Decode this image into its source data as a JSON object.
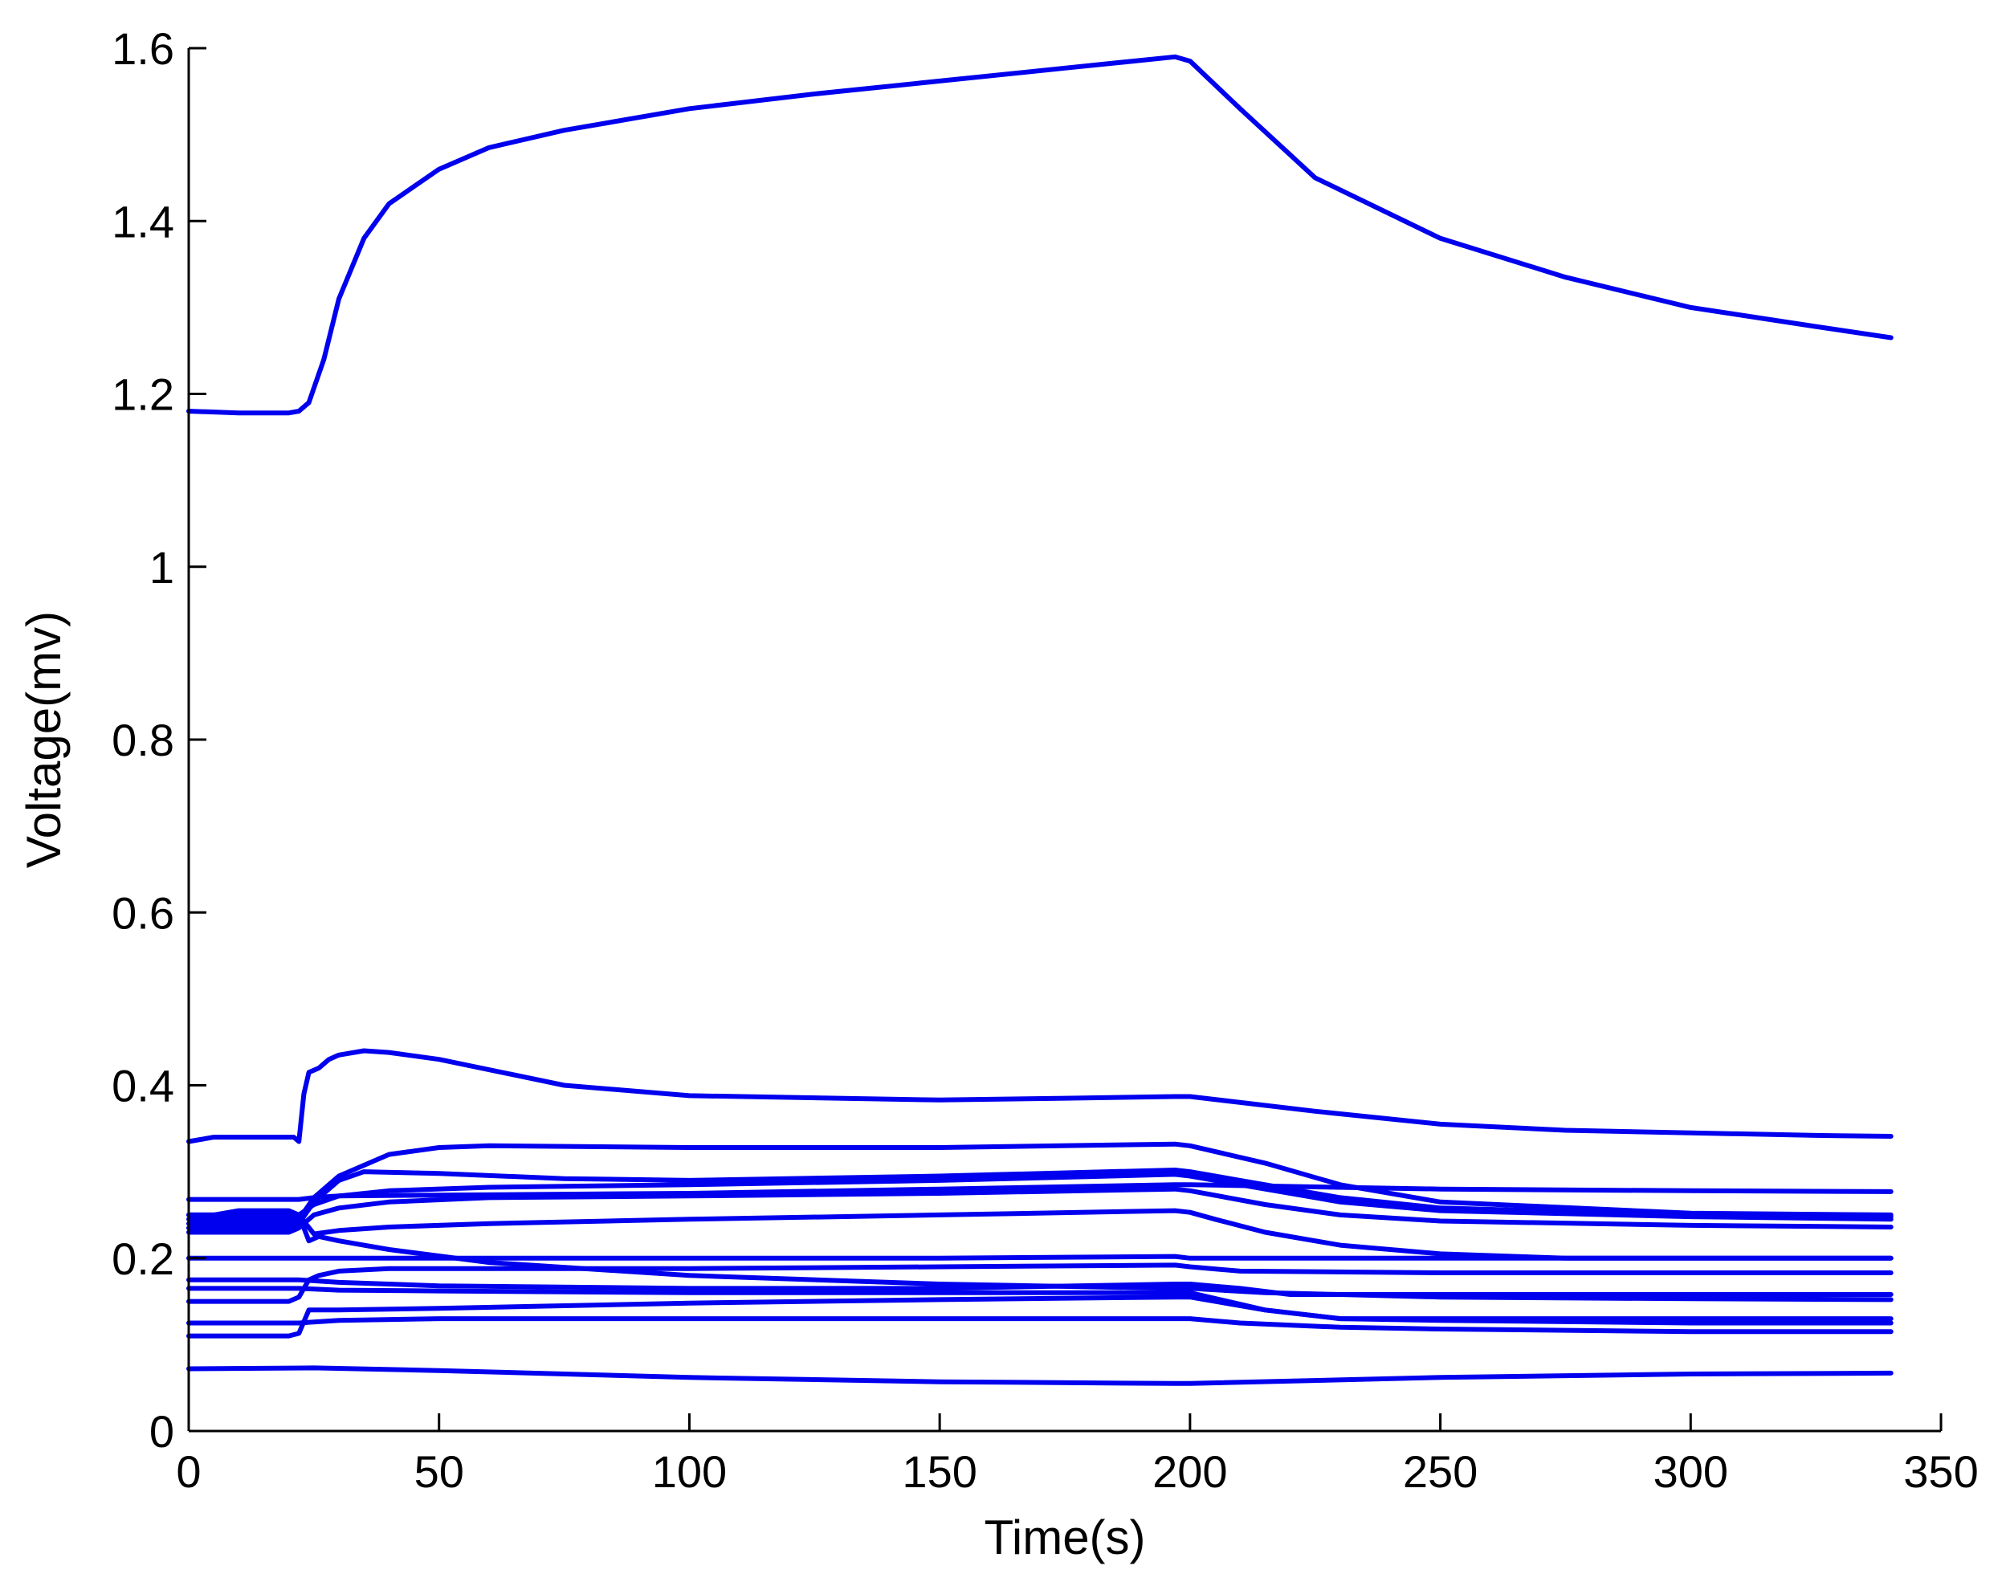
{
  "chart_data": {
    "type": "line",
    "title": "",
    "xlabel": "Time(s)",
    "ylabel": "Voltage(mv)",
    "xlim": [
      0,
      350
    ],
    "ylim": [
      0,
      1.6
    ],
    "xticks": [
      0,
      50,
      100,
      150,
      200,
      250,
      300,
      350
    ],
    "yticks": [
      0,
      0.2,
      0.4,
      0.6,
      0.8,
      1,
      1.2,
      1.4,
      1.6
    ],
    "xtick_labels": [
      "0",
      "50",
      "100",
      "150",
      "200",
      "250",
      "300",
      "350"
    ],
    "ytick_labels": [
      "0",
      "0.2",
      "0.4",
      "0.6",
      "0.8",
      "1",
      "1.2",
      "1.4",
      "1.6"
    ],
    "grid": false,
    "line_color": "#0000ee",
    "series": [
      {
        "x": [
          0,
          10,
          20,
          22,
          24,
          27,
          30,
          35,
          40,
          50,
          60,
          75,
          100,
          125,
          150,
          175,
          197,
          200,
          210,
          225,
          250,
          275,
          300,
          325,
          340
        ],
        "y": [
          1.18,
          1.178,
          1.178,
          1.18,
          1.19,
          1.24,
          1.31,
          1.38,
          1.42,
          1.46,
          1.485,
          1.505,
          1.53,
          1.547,
          1.562,
          1.577,
          1.59,
          1.585,
          1.53,
          1.45,
          1.38,
          1.335,
          1.3,
          1.278,
          1.265
        ]
      },
      {
        "x": [
          0,
          5,
          21,
          22,
          23,
          24,
          26,
          28,
          30,
          35,
          40,
          50,
          75,
          100,
          150,
          175,
          197,
          200,
          225,
          250,
          275,
          300,
          325,
          340
        ],
        "y": [
          0.335,
          0.34,
          0.34,
          0.335,
          0.39,
          0.415,
          0.42,
          0.43,
          0.435,
          0.44,
          0.438,
          0.43,
          0.4,
          0.388,
          0.383,
          0.385,
          0.387,
          0.387,
          0.37,
          0.355,
          0.348,
          0.345,
          0.342,
          0.341
        ]
      },
      {
        "x": [
          0,
          20,
          22,
          25,
          30,
          40,
          50,
          60,
          100,
          150,
          197,
          200,
          215,
          230,
          250,
          300,
          340
        ],
        "y": [
          0.24,
          0.24,
          0.245,
          0.27,
          0.295,
          0.32,
          0.328,
          0.33,
          0.328,
          0.328,
          0.332,
          0.33,
          0.31,
          0.285,
          0.265,
          0.252,
          0.25
        ]
      },
      {
        "x": [
          0,
          20,
          22,
          25,
          30,
          35,
          50,
          75,
          100,
          150,
          197,
          200,
          210,
          230,
          250,
          300,
          340
        ],
        "y": [
          0.235,
          0.235,
          0.24,
          0.265,
          0.29,
          0.3,
          0.298,
          0.292,
          0.29,
          0.295,
          0.302,
          0.3,
          0.29,
          0.27,
          0.258,
          0.25,
          0.248
        ]
      },
      {
        "x": [
          0,
          20,
          22,
          25,
          30,
          40,
          60,
          100,
          150,
          197,
          200,
          215,
          230,
          250,
          300,
          340
        ],
        "y": [
          0.245,
          0.245,
          0.25,
          0.262,
          0.272,
          0.278,
          0.282,
          0.285,
          0.29,
          0.297,
          0.295,
          0.28,
          0.265,
          0.255,
          0.248,
          0.245
        ]
      },
      {
        "x": [
          0,
          20,
          22,
          25,
          30,
          40,
          60,
          100,
          150,
          197,
          200,
          215,
          230,
          250,
          300,
          340
        ],
        "y": [
          0.23,
          0.23,
          0.235,
          0.25,
          0.258,
          0.265,
          0.27,
          0.272,
          0.275,
          0.28,
          0.278,
          0.262,
          0.25,
          0.243,
          0.238,
          0.236
        ]
      },
      {
        "x": [
          0,
          22,
          25,
          30,
          50,
          100,
          150,
          197,
          200,
          250,
          300,
          340
        ],
        "y": [
          0.268,
          0.268,
          0.27,
          0.272,
          0.273,
          0.275,
          0.28,
          0.285,
          0.285,
          0.28,
          0.278,
          0.277
        ]
      },
      {
        "x": [
          0,
          20,
          22,
          25,
          30,
          40,
          60,
          100,
          150,
          197,
          200,
          205,
          215,
          230,
          250,
          275,
          300,
          340
        ],
        "y": [
          0.25,
          0.25,
          0.25,
          0.228,
          0.232,
          0.236,
          0.24,
          0.245,
          0.25,
          0.255,
          0.253,
          0.245,
          0.23,
          0.215,
          0.205,
          0.2,
          0.2,
          0.2
        ]
      },
      {
        "x": [
          0,
          5,
          10,
          20,
          22,
          24,
          26,
          30,
          40,
          60,
          100,
          150,
          197,
          200,
          215,
          230,
          250,
          300,
          340
        ],
        "y": [
          0.25,
          0.25,
          0.255,
          0.255,
          0.25,
          0.22,
          0.225,
          0.22,
          0.21,
          0.195,
          0.18,
          0.17,
          0.165,
          0.165,
          0.16,
          0.158,
          0.155,
          0.153,
          0.152
        ]
      },
      {
        "x": [
          0,
          22,
          25,
          30,
          50,
          100,
          150,
          197,
          200,
          210,
          230,
          250,
          300,
          340
        ],
        "y": [
          0.2,
          0.2,
          0.2,
          0.2,
          0.2,
          0.2,
          0.2,
          0.202,
          0.2,
          0.2,
          0.2,
          0.2,
          0.2,
          0.2
        ]
      },
      {
        "x": [
          0,
          20,
          22,
          24,
          26,
          30,
          40,
          60,
          100,
          150,
          197,
          200,
          210,
          250,
          300,
          340
        ],
        "y": [
          0.15,
          0.15,
          0.155,
          0.175,
          0.18,
          0.185,
          0.188,
          0.188,
          0.188,
          0.19,
          0.192,
          0.19,
          0.185,
          0.183,
          0.183,
          0.183
        ]
      },
      {
        "x": [
          0,
          22,
          30,
          50,
          100,
          150,
          197,
          200,
          210,
          220,
          250,
          300,
          340
        ],
        "y": [
          0.175,
          0.175,
          0.172,
          0.168,
          0.165,
          0.165,
          0.17,
          0.17,
          0.165,
          0.158,
          0.158,
          0.158,
          0.158
        ]
      },
      {
        "x": [
          0,
          22,
          30,
          50,
          100,
          150,
          197,
          200,
          215,
          230,
          250,
          300,
          340
        ],
        "y": [
          0.165,
          0.165,
          0.163,
          0.162,
          0.16,
          0.16,
          0.16,
          0.16,
          0.14,
          0.13,
          0.128,
          0.125,
          0.125
        ]
      },
      {
        "x": [
          0,
          20,
          22,
          24,
          30,
          50,
          100,
          150,
          197,
          200,
          215,
          230,
          250,
          300,
          340
        ],
        "y": [
          0.11,
          0.11,
          0.113,
          0.14,
          0.14,
          0.142,
          0.148,
          0.152,
          0.155,
          0.155,
          0.14,
          0.13,
          0.13,
          0.13,
          0.13
        ]
      },
      {
        "x": [
          0,
          22,
          30,
          50,
          100,
          150,
          197,
          200,
          210,
          230,
          250,
          300,
          340
        ],
        "y": [
          0.125,
          0.125,
          0.128,
          0.13,
          0.13,
          0.13,
          0.13,
          0.13,
          0.125,
          0.12,
          0.118,
          0.115,
          0.115
        ]
      },
      {
        "x": [
          0,
          25,
          50,
          100,
          150,
          197,
          200,
          250,
          300,
          340
        ],
        "y": [
          0.072,
          0.073,
          0.07,
          0.062,
          0.057,
          0.055,
          0.055,
          0.062,
          0.066,
          0.067
        ]
      }
    ]
  }
}
